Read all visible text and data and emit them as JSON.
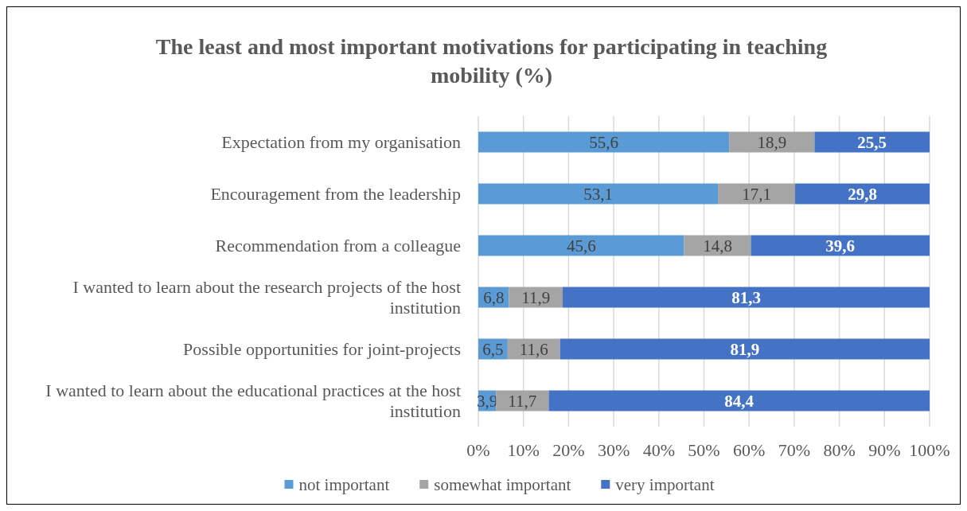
{
  "chart_data": {
    "type": "bar",
    "orientation": "horizontal",
    "stacked": true,
    "title": "The least and most important motivations for participating in teaching mobility (%)",
    "categories": [
      "Expectation from my organisation",
      "Encouragement from the leadership",
      "Recommendation from a colleague",
      "I wanted to learn about the research projects of the host institution",
      "Possible opportunities for joint-projects",
      "I wanted to learn about the educational practices at the host institution"
    ],
    "series": [
      {
        "name": "not important",
        "color": "#5b9bd5",
        "values": [
          55.6,
          53.1,
          45.6,
          6.8,
          6.5,
          3.9
        ],
        "value_labels": [
          "55,6",
          "53,1",
          "45,6",
          "6,8",
          "6,5",
          "3,9"
        ]
      },
      {
        "name": "somewhat important",
        "color": "#a5a5a5",
        "values": [
          18.9,
          17.1,
          14.8,
          11.9,
          11.6,
          11.7
        ],
        "value_labels": [
          "18,9",
          "17,1",
          "14,8",
          "11,9",
          "11,6",
          "11,7"
        ]
      },
      {
        "name": "very important",
        "color": "#4472c4",
        "values": [
          25.5,
          29.8,
          39.6,
          81.3,
          81.9,
          84.4
        ],
        "value_labels": [
          "25,5",
          "29,8",
          "39,6",
          "81,3",
          "81,9",
          "84,4"
        ]
      }
    ],
    "xlim": [
      0,
      100
    ],
    "xticks": [
      {
        "value": 0,
        "label": "0%"
      },
      {
        "value": 10,
        "label": "10%"
      },
      {
        "value": 20,
        "label": "20%"
      },
      {
        "value": 30,
        "label": "30%"
      },
      {
        "value": 40,
        "label": "40%"
      },
      {
        "value": 50,
        "label": "50%"
      },
      {
        "value": 60,
        "label": "60%"
      },
      {
        "value": 70,
        "label": "70%"
      },
      {
        "value": 80,
        "label": "80%"
      },
      {
        "value": 90,
        "label": "90%"
      },
      {
        "value": 100,
        "label": "100%"
      }
    ],
    "grid": "x",
    "legend": "bottom"
  }
}
